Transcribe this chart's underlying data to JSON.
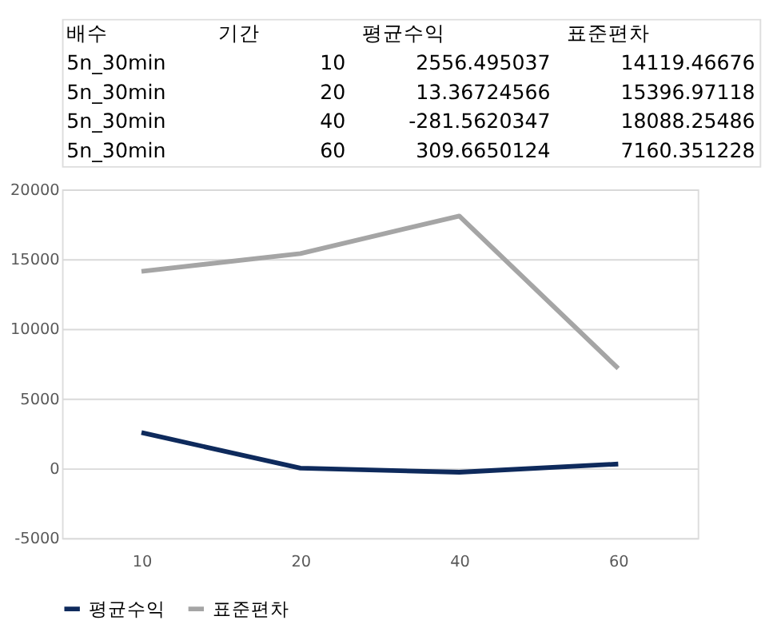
{
  "chart_data": [
    {
      "type": "other",
      "annotations": [
        "배수",
        "기간",
        "평균수익",
        "표준편차",
        "5n_30min",
        "10",
        "2556.495037",
        "14119.46676",
        "5n_30min",
        "20",
        "13.36724566",
        "15396.97118",
        "5n_30min",
        "40",
        "-281.5620347",
        "18088.25486",
        "5n_30min",
        "60",
        "309.6650124",
        "7160.351228"
      ]
    },
    {
      "type": "line",
      "categories": [
        "10",
        "20",
        "40",
        "60"
      ],
      "series": [
        {
          "name": "평균수익",
          "color": "#0e2a5c",
          "values": [
            2560,
            10,
            -280,
            310
          ]
        },
        {
          "name": "표준편차",
          "color": "#a5a5a5",
          "values": [
            14120,
            15400,
            18090,
            7160
          ]
        }
      ],
      "ylim": [
        -5000,
        20000
      ],
      "yticks": [
        -5000,
        0,
        5000,
        10000,
        15000,
        20000
      ],
      "grid": "y",
      "legend": "bottom",
      "marker": "none",
      "line_style": "solid"
    }
  ]
}
